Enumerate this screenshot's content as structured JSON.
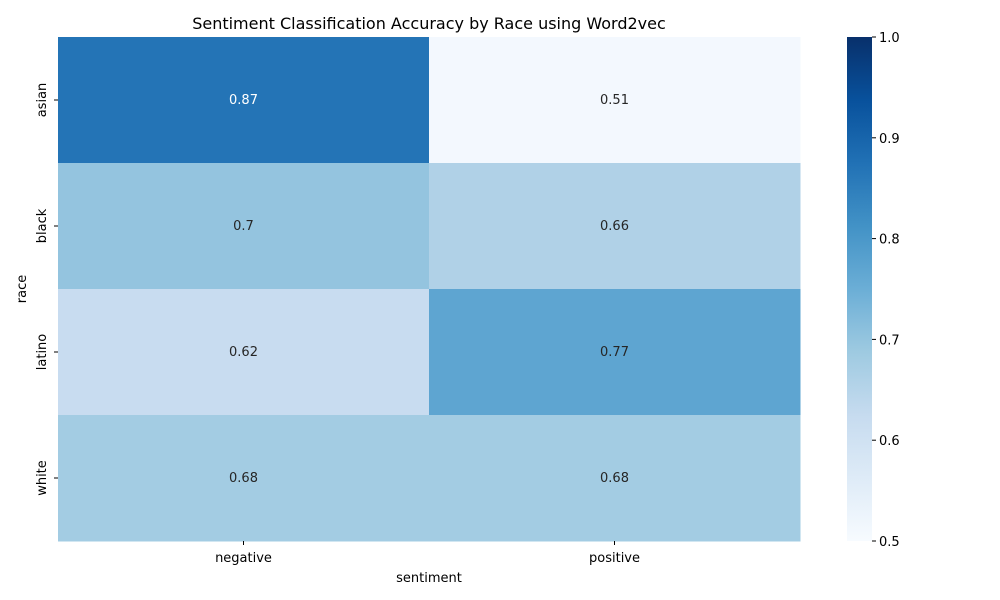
{
  "chart_data": {
    "type": "heatmap",
    "title": "Sentiment Classification Accuracy by Race using Word2vec",
    "xlabel": "sentiment",
    "ylabel": "race",
    "x_categories": [
      "negative",
      "positive"
    ],
    "y_categories": [
      "asian",
      "black",
      "latino",
      "white"
    ],
    "values": [
      [
        0.87,
        0.51
      ],
      [
        0.7,
        0.66
      ],
      [
        0.62,
        0.77
      ],
      [
        0.68,
        0.68
      ]
    ],
    "cell_labels": [
      [
        "0.87",
        "0.51"
      ],
      [
        "0.7",
        "0.66"
      ],
      [
        "0.62",
        "0.77"
      ],
      [
        "0.68",
        "0.68"
      ]
    ],
    "colorbar": {
      "range": [
        0.5,
        1.0
      ],
      "ticks": [
        0.5,
        0.6,
        0.7,
        0.8,
        0.9,
        1.0
      ],
      "tick_labels": [
        "0.5",
        "0.6",
        "0.7",
        "0.8",
        "0.9",
        "1.0"
      ],
      "colormap": "Blues"
    },
    "grid": false
  }
}
